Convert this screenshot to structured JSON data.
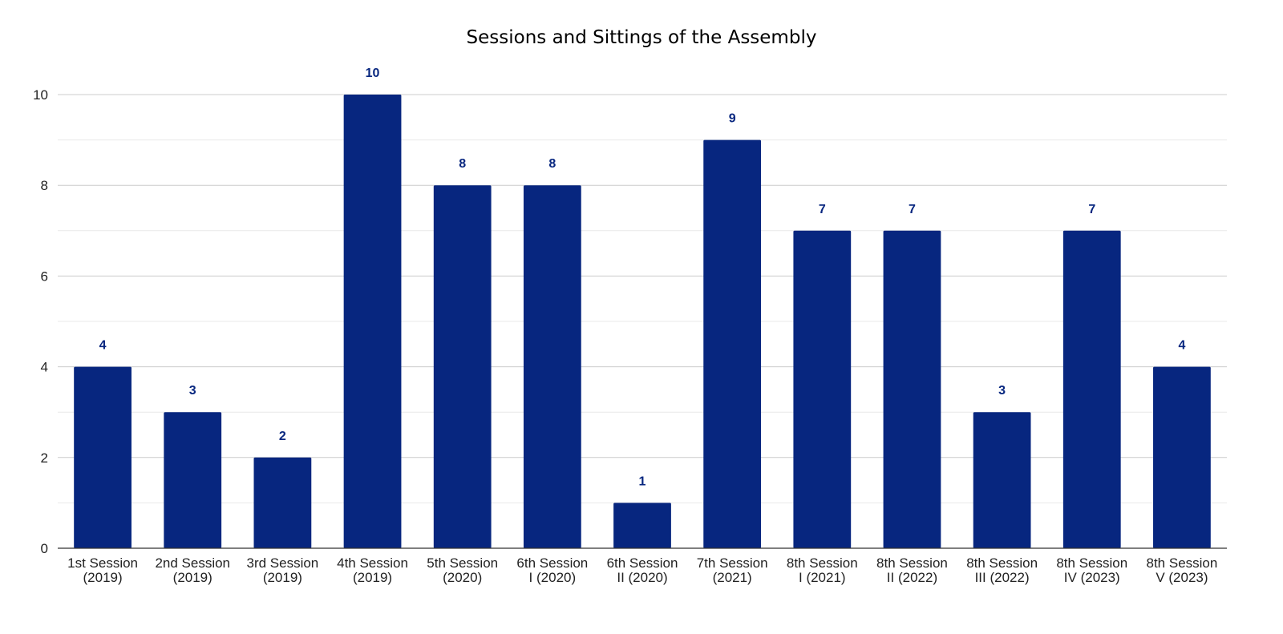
{
  "chart_data": {
    "type": "bar",
    "title": "Sessions and Sittings of the Assembly",
    "xlabel": "",
    "ylabel": "",
    "categories": [
      [
        "1st Session",
        "(2019)"
      ],
      [
        "2nd Session",
        "(2019)"
      ],
      [
        "3rd Session",
        "(2019)"
      ],
      [
        "4th Session",
        "(2019)"
      ],
      [
        "5th Session",
        "(2020)"
      ],
      [
        "6th Session",
        "I (2020)"
      ],
      [
        "6th Session",
        "II (2020)"
      ],
      [
        "7th Session",
        "(2021)"
      ],
      [
        "8th Session",
        "I (2021)"
      ],
      [
        "8th Session",
        "II (2022)"
      ],
      [
        "8th Session",
        "III (2022)"
      ],
      [
        "8th Session",
        "IV (2023)"
      ],
      [
        "8th Session",
        "V (2023)"
      ]
    ],
    "values": [
      4,
      3,
      2,
      10,
      8,
      8,
      1,
      9,
      7,
      7,
      3,
      7,
      4
    ],
    "ylim": [
      0,
      10
    ],
    "yticks": [
      0,
      2,
      4,
      6,
      8,
      10
    ],
    "grid": true,
    "minor_grid": true,
    "legend": "none",
    "colors": {
      "bar": "#07267f",
      "data_label": "#07267f",
      "grid_major": "#cccccc",
      "grid_minor": "#e8e8e8",
      "axis": "#333333"
    }
  }
}
